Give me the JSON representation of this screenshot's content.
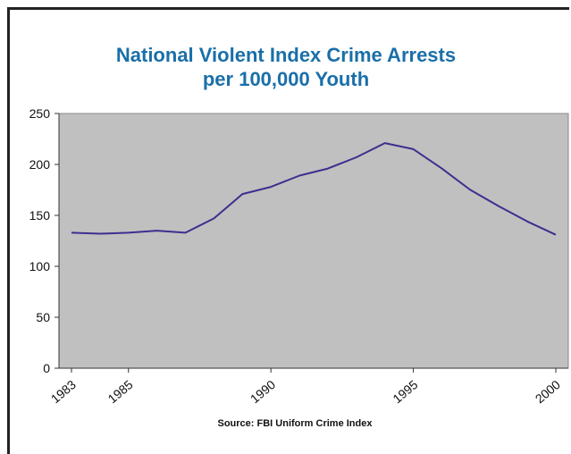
{
  "chart_data": {
    "type": "line",
    "title": "National Violent Index Crime Arrests",
    "subtitle": "per 100,000 Youth",
    "source": "Source:  FBI Uniform Crime Index",
    "xlabel": "",
    "ylabel": "",
    "xlim": [
      1983,
      2000
    ],
    "ylim": [
      0,
      250
    ],
    "y_ticks": [
      "0",
      "50",
      "100",
      "150",
      "200",
      "250"
    ],
    "x_ticks": [
      {
        "value": 1983,
        "label": "1983"
      },
      {
        "value": 1985,
        "label": "1985"
      },
      {
        "value": 1990,
        "label": "1990"
      },
      {
        "value": 1995,
        "label": "1995"
      },
      {
        "value": 2000,
        "label": "2000"
      }
    ],
    "grid": false,
    "line_color": "#3b2f8f",
    "plot_background": "#c0c0c0",
    "series": [
      {
        "x": [
          1983,
          1984,
          1985,
          1986,
          1987,
          1988,
          1989,
          1990,
          1991,
          1992,
          1993,
          1994,
          1995,
          1996,
          1997,
          1998,
          1999,
          2000
        ],
        "values": [
          133,
          132,
          133,
          135,
          133,
          147,
          171,
          178,
          189,
          196,
          207,
          221,
          215,
          196,
          175,
          159,
          144,
          131
        ]
      }
    ]
  }
}
